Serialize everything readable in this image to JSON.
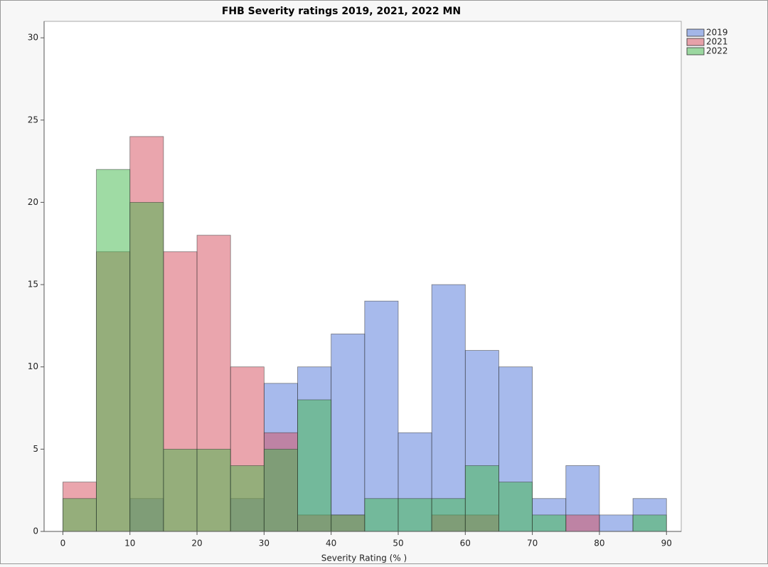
{
  "chart_data": {
    "type": "histogram",
    "title": "FHB Severity ratings 2019, 2021, 2022 MN",
    "x_label": "Severity Rating (% )",
    "bins": [
      0,
      5,
      10,
      15,
      20,
      25,
      30,
      35,
      40,
      45,
      50,
      55,
      60,
      65,
      70,
      75,
      80,
      85,
      90
    ],
    "series": [
      {
        "name": "2019",
        "color": "#4f76d9",
        "values": [
          0,
          0,
          2,
          0,
          0,
          2,
          9,
          10,
          12,
          14,
          6,
          15,
          11,
          10,
          2,
          4,
          1,
          2
        ]
      },
      {
        "name": "2021",
        "color": "#d64c5c",
        "values": [
          3,
          17,
          24,
          17,
          18,
          10,
          6,
          1,
          1,
          0,
          0,
          1,
          1,
          0,
          0,
          1,
          0,
          0
        ]
      },
      {
        "name": "2022",
        "color": "#3fb84a",
        "values": [
          2,
          22,
          20,
          5,
          5,
          4,
          5,
          8,
          1,
          2,
          2,
          2,
          4,
          3,
          1,
          0,
          0,
          1
        ]
      }
    ],
    "xlim": [
      -2.8,
      92.2
    ],
    "ylim": [
      0,
      31
    ],
    "xticks": [
      0,
      10,
      20,
      30,
      40,
      50,
      60,
      70,
      80,
      90
    ],
    "yticks": [
      0,
      5,
      10,
      15,
      20,
      25,
      30
    ],
    "legend": "right"
  }
}
